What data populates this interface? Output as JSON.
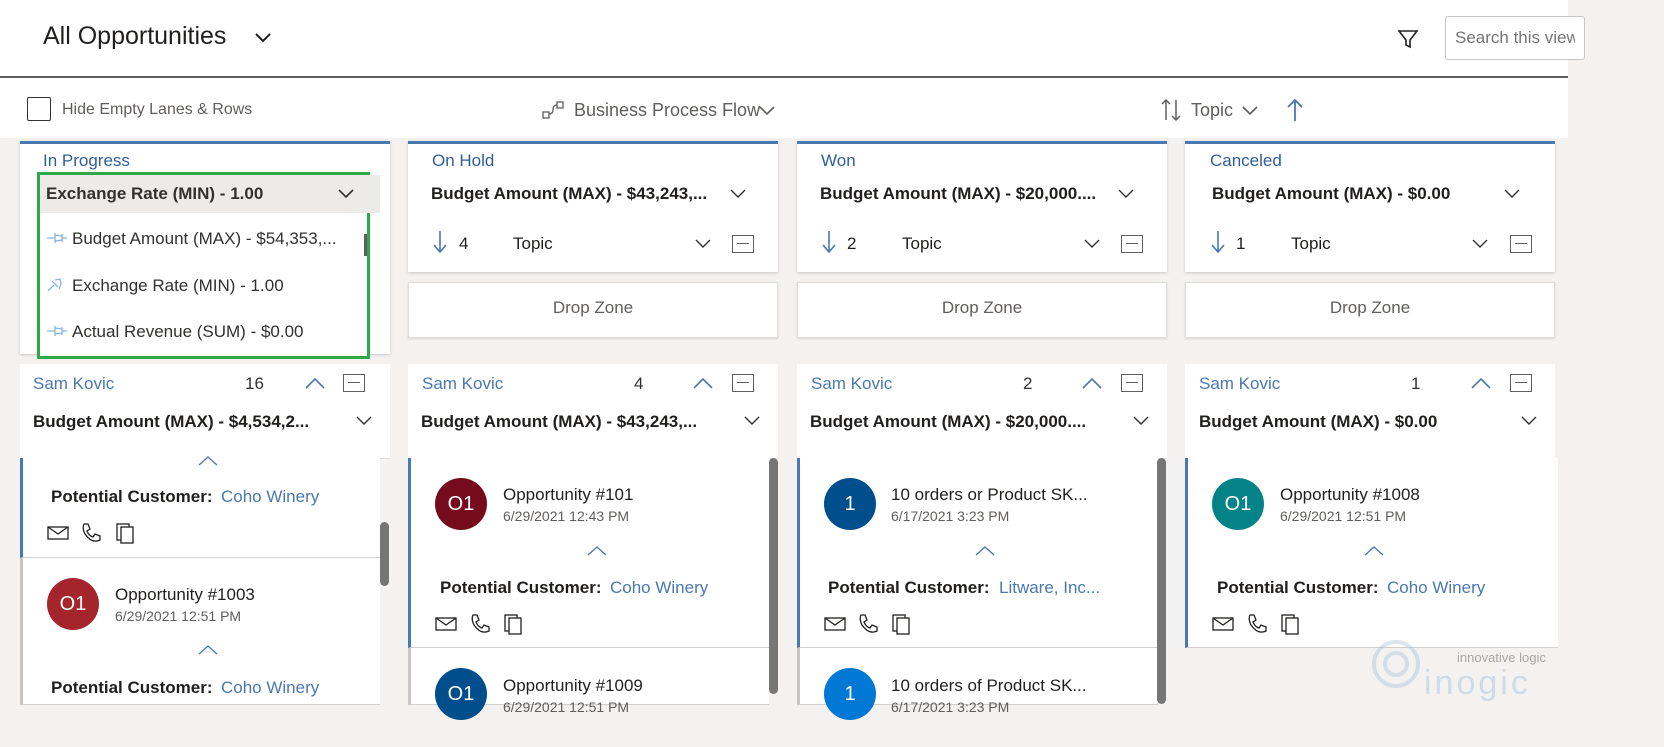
{
  "header": {
    "title": "All Opportunities",
    "search_placeholder": "Search this view"
  },
  "toolbar": {
    "hide_empty_label": "Hide Empty Lanes & Rows",
    "bpf_label": "Business Process Flow",
    "sort_label": "Topic"
  },
  "lanes": [
    {
      "stage": "In Progress",
      "aggregate_selected": "Exchange Rate (MIN) - 1.00",
      "dropdown_options": [
        "Budget Amount (MAX) - $54,353,...",
        "Exchange Rate (MIN) - 1.00",
        "Actual Revenue (SUM) - $0.00"
      ],
      "group": {
        "owner": "Sam Kovic",
        "count": "16",
        "aggregate": "Budget Amount (MAX) - $4,534,2..."
      },
      "cards": [
        {
          "label": "Potential Customer:",
          "customer": "Coho Winery"
        },
        {
          "avatar": "O1",
          "title": "Opportunity #1003",
          "date": "6/29/2021 12:51 PM",
          "label": "Potential Customer:",
          "customer": "Coho Winery"
        }
      ]
    },
    {
      "stage": "On Hold",
      "aggregate": "Budget Amount (MAX) - $43,243,...",
      "count": "4",
      "sort": "Topic",
      "drop_zone": "Drop Zone",
      "group": {
        "owner": "Sam Kovic",
        "count": "4",
        "aggregate": "Budget Amount (MAX) - $43,243,..."
      },
      "cards": [
        {
          "avatar": "O1",
          "title": "Opportunity #101",
          "date": "6/29/2021 12:43 PM",
          "label": "Potential Customer:",
          "customer": "Coho Winery"
        },
        {
          "avatar": "O1",
          "title": "Opportunity #1009",
          "date": "6/29/2021 12:51 PM"
        }
      ]
    },
    {
      "stage": "Won",
      "aggregate": "Budget Amount (MAX) - $20,000....",
      "count": "2",
      "sort": "Topic",
      "drop_zone": "Drop Zone",
      "group": {
        "owner": "Sam Kovic",
        "count": "2",
        "aggregate": "Budget Amount (MAX) - $20,000...."
      },
      "cards": [
        {
          "avatar": "1",
          "title": "10 orders or Product SK...",
          "date": "6/17/2021 3:23 PM",
          "label": "Potential Customer:",
          "customer": "Litware, Inc..."
        },
        {
          "avatar": "1",
          "title": "10 orders of Product SK...",
          "date": "6/17/2021 3:23 PM"
        }
      ]
    },
    {
      "stage": "Canceled",
      "aggregate": "Budget Amount (MAX) - $0.00",
      "count": "1",
      "sort": "Topic",
      "drop_zone": "Drop Zone",
      "group": {
        "owner": "Sam Kovic",
        "count": "1",
        "aggregate": "Budget Amount (MAX) - $0.00"
      },
      "cards": [
        {
          "avatar": "O1",
          "title": "Opportunity #1008",
          "date": "6/29/2021 12:51 PM",
          "label": "Potential Customer:",
          "customer": "Coho Winery"
        }
      ]
    }
  ],
  "watermark": {
    "line1": "innovative logic",
    "line2": "inogic"
  },
  "colors": {
    "accent": "#4a78b0",
    "highlight": "#2ea84a",
    "avatar_red": "#a4262c",
    "avatar_maroon": "#750b1c",
    "avatar_blue": "#004e8c",
    "avatar_teal": "#038387",
    "avatar_lightblue": "#0078d4"
  }
}
